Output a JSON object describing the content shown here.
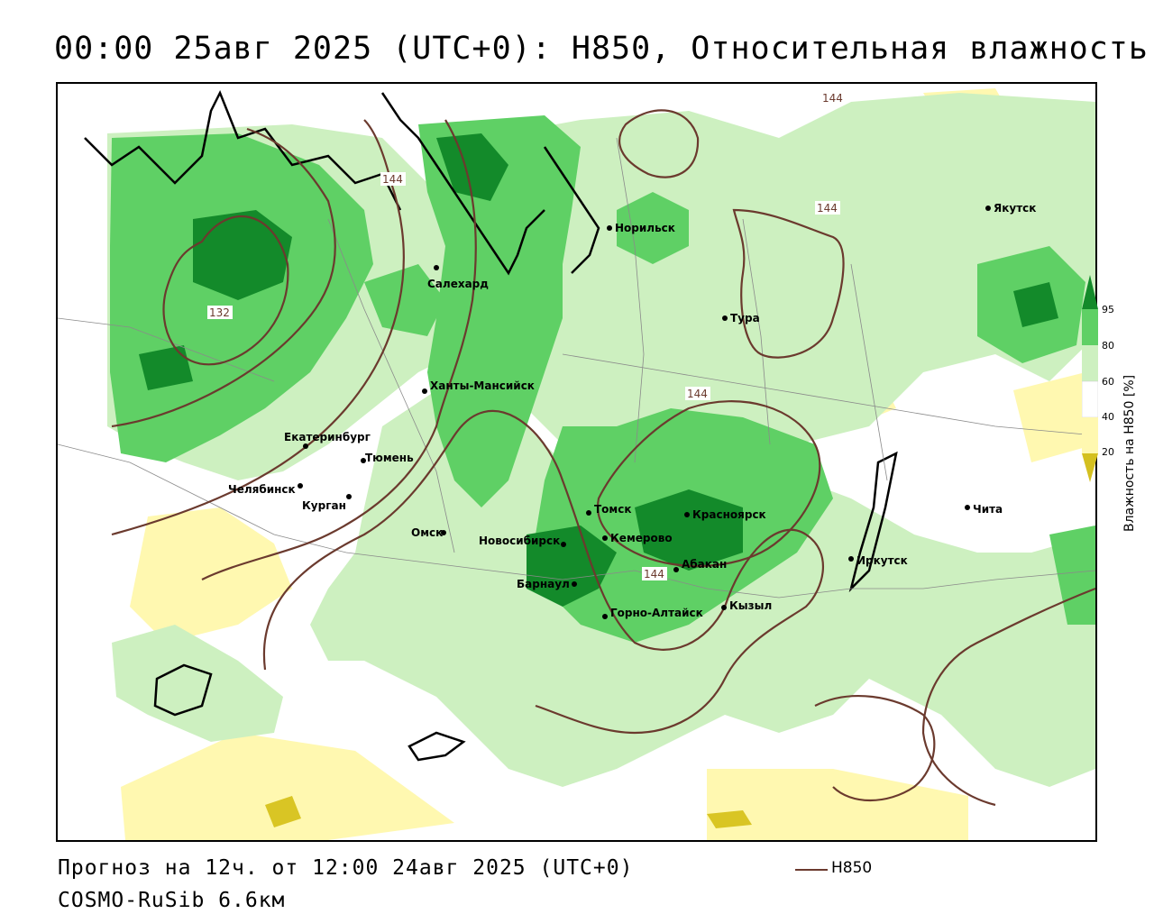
{
  "title": "00:00 25авг 2025 (UTC+0): H850, Относительная влажность",
  "footer": {
    "forecast": "Прогноз на 12ч. от 12:00 24авг 2025 (UTC+0)",
    "model": "COSMO-RuSib 6.6км"
  },
  "legend": {
    "line_label": "H850",
    "line_color": "#6b3a2e"
  },
  "colorbar": {
    "title": "Влажность на H850 [%]",
    "ticks": [
      "95",
      "80",
      "60",
      "40",
      "20"
    ],
    "colors": {
      "lt20": "#d4c020",
      "20_40": "#fff8b0",
      "40_60": "#ffffff",
      "60_80": "#cdf0c0",
      "80_95": "#5fd065",
      "gt95": "#138a2a"
    }
  },
  "cities": [
    {
      "name": "Норильск"
    },
    {
      "name": "Якутск"
    },
    {
      "name": "Салехард"
    },
    {
      "name": "Тура"
    },
    {
      "name": "Ханты-Мансийск"
    },
    {
      "name": "Екатеринбург"
    },
    {
      "name": "Тюмень"
    },
    {
      "name": "Челябинск"
    },
    {
      "name": "Курган"
    },
    {
      "name": "Омск"
    },
    {
      "name": "Новосибирск"
    },
    {
      "name": "Томск"
    },
    {
      "name": "Кемерово"
    },
    {
      "name": "Красноярск"
    },
    {
      "name": "Барнаул"
    },
    {
      "name": "Абакан"
    },
    {
      "name": "Горно-Алтайск"
    },
    {
      "name": "Кызыл"
    },
    {
      "name": "Иркутск"
    },
    {
      "name": "Чита"
    }
  ],
  "contour_labels": [
    "144",
    "144",
    "132",
    "144",
    "144",
    "144"
  ]
}
